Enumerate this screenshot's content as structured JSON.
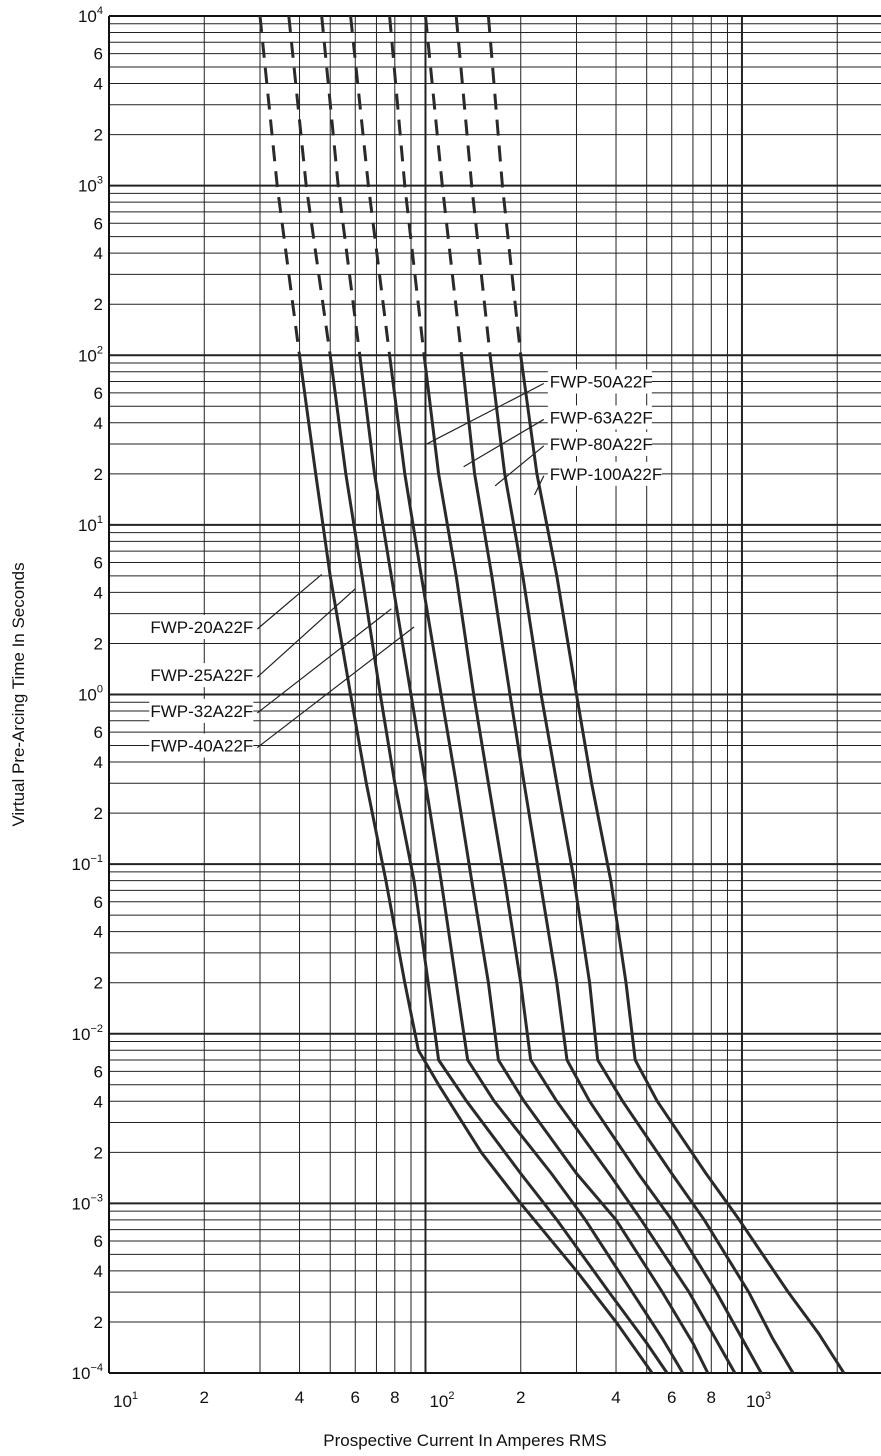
{
  "chart_data": {
    "type": "line",
    "title": "",
    "xlabel": "Prospective Current In Amperes RMS",
    "ylabel": "Virtual Pre-Arcing Time In Seconds",
    "xscale": "log",
    "yscale": "log",
    "xlim": [
      10,
      2750
    ],
    "ylim": [
      0.0001,
      10000
    ],
    "grid": true,
    "x_ticks": [
      {
        "v": 10,
        "base": "10",
        "exp": "1"
      },
      {
        "v": 20,
        "base": "2",
        "exp": ""
      },
      {
        "v": 40,
        "base": "4",
        "exp": ""
      },
      {
        "v": 60,
        "base": "6",
        "exp": ""
      },
      {
        "v": 80,
        "base": "8",
        "exp": ""
      },
      {
        "v": 100,
        "base": "10",
        "exp": "2"
      },
      {
        "v": 200,
        "base": "2",
        "exp": ""
      },
      {
        "v": 400,
        "base": "4",
        "exp": ""
      },
      {
        "v": 600,
        "base": "6",
        "exp": ""
      },
      {
        "v": 800,
        "base": "8",
        "exp": ""
      },
      {
        "v": 1000,
        "base": "10",
        "exp": "3"
      }
    ],
    "y_ticks": [
      {
        "v": 10000,
        "base": "10",
        "exp": "4"
      },
      {
        "v": 6000,
        "base": "6",
        "exp": ""
      },
      {
        "v": 4000,
        "base": "4",
        "exp": ""
      },
      {
        "v": 2000,
        "base": "2",
        "exp": ""
      },
      {
        "v": 1000,
        "base": "10",
        "exp": "3"
      },
      {
        "v": 600,
        "base": "6",
        "exp": ""
      },
      {
        "v": 400,
        "base": "4",
        "exp": ""
      },
      {
        "v": 200,
        "base": "2",
        "exp": ""
      },
      {
        "v": 100,
        "base": "10",
        "exp": "2"
      },
      {
        "v": 60,
        "base": "6",
        "exp": ""
      },
      {
        "v": 40,
        "base": "4",
        "exp": ""
      },
      {
        "v": 20,
        "base": "2",
        "exp": ""
      },
      {
        "v": 10,
        "base": "10",
        "exp": "1"
      },
      {
        "v": 6,
        "base": "6",
        "exp": ""
      },
      {
        "v": 4,
        "base": "4",
        "exp": ""
      },
      {
        "v": 2,
        "base": "2",
        "exp": ""
      },
      {
        "v": 1,
        "base": "10",
        "exp": "0"
      },
      {
        "v": 0.6,
        "base": "6",
        "exp": ""
      },
      {
        "v": 0.4,
        "base": "4",
        "exp": ""
      },
      {
        "v": 0.2,
        "base": "2",
        "exp": ""
      },
      {
        "v": 0.1,
        "base": "10",
        "exp": "−1"
      },
      {
        "v": 0.06,
        "base": "6",
        "exp": ""
      },
      {
        "v": 0.04,
        "base": "4",
        "exp": ""
      },
      {
        "v": 0.02,
        "base": "2",
        "exp": ""
      },
      {
        "v": 0.01,
        "base": "10",
        "exp": "−2"
      },
      {
        "v": 0.006,
        "base": "6",
        "exp": ""
      },
      {
        "v": 0.004,
        "base": "4",
        "exp": ""
      },
      {
        "v": 0.002,
        "base": "2",
        "exp": ""
      },
      {
        "v": 0.001,
        "base": "10",
        "exp": "−3"
      },
      {
        "v": 0.0006,
        "base": "6",
        "exp": ""
      },
      {
        "v": 0.0004,
        "base": "4",
        "exp": ""
      },
      {
        "v": 0.0002,
        "base": "2",
        "exp": ""
      },
      {
        "v": 0.0001,
        "base": "10",
        "exp": "−4"
      }
    ],
    "series": [
      {
        "name": "FWP-20A22F",
        "dashed_top": true,
        "points": [
          [
            30,
            10000
          ],
          [
            34,
            1000
          ],
          [
            40,
            100
          ],
          [
            45,
            20
          ],
          [
            50,
            5
          ],
          [
            58,
            1
          ],
          [
            65,
            0.3
          ],
          [
            75,
            0.08
          ],
          [
            86,
            0.02
          ],
          [
            95,
            0.008
          ],
          [
            110,
            0.005
          ],
          [
            150,
            0.002
          ],
          [
            200,
            0.001
          ],
          [
            300,
            0.0004
          ],
          [
            400,
            0.0002
          ],
          [
            520,
            0.0001
          ]
        ]
      },
      {
        "name": "FWP-25A22F",
        "dashed_top": true,
        "points": [
          [
            37,
            10000
          ],
          [
            42,
            1000
          ],
          [
            50,
            100
          ],
          [
            56,
            20
          ],
          [
            63,
            5
          ],
          [
            72,
            1
          ],
          [
            80,
            0.3
          ],
          [
            92,
            0.08
          ],
          [
            102,
            0.02
          ],
          [
            110,
            0.007
          ],
          [
            135,
            0.004
          ],
          [
            200,
            0.0015
          ],
          [
            260,
            0.0008
          ],
          [
            380,
            0.0003
          ],
          [
            500,
            0.00015
          ],
          [
            580,
            0.0001
          ]
        ]
      },
      {
        "name": "FWP-32A22F",
        "dashed_top": true,
        "points": [
          [
            47,
            10000
          ],
          [
            53,
            1000
          ],
          [
            62,
            100
          ],
          [
            69,
            20
          ],
          [
            78,
            5
          ],
          [
            90,
            1
          ],
          [
            100,
            0.3
          ],
          [
            112,
            0.08
          ],
          [
            125,
            0.02
          ],
          [
            136,
            0.007
          ],
          [
            165,
            0.004
          ],
          [
            250,
            0.0015
          ],
          [
            320,
            0.0008
          ],
          [
            450,
            0.0003
          ],
          [
            560,
            0.00016
          ],
          [
            650,
            0.0001
          ]
        ]
      },
      {
        "name": "FWP-40A22F",
        "dashed_top": true,
        "points": [
          [
            58,
            10000
          ],
          [
            66,
            1000
          ],
          [
            77,
            100
          ],
          [
            86,
            20
          ],
          [
            97,
            5
          ],
          [
            112,
            1
          ],
          [
            125,
            0.3
          ],
          [
            140,
            0.08
          ],
          [
            158,
            0.02
          ],
          [
            170,
            0.007
          ],
          [
            205,
            0.004
          ],
          [
            300,
            0.0015
          ],
          [
            400,
            0.0008
          ],
          [
            560,
            0.0003
          ],
          [
            700,
            0.00015
          ],
          [
            780,
            0.0001
          ]
        ]
      },
      {
        "name": "FWP-50A22F",
        "dashed_top": true,
        "points": [
          [
            77,
            10000
          ],
          [
            86,
            1000
          ],
          [
            99,
            100
          ],
          [
            110,
            20
          ],
          [
            125,
            5
          ],
          [
            142,
            1
          ],
          [
            158,
            0.3
          ],
          [
            178,
            0.08
          ],
          [
            200,
            0.02
          ],
          [
            215,
            0.007
          ],
          [
            260,
            0.004
          ],
          [
            380,
            0.0015
          ],
          [
            480,
            0.0008
          ],
          [
            680,
            0.0003
          ],
          [
            840,
            0.00015
          ],
          [
            950,
            0.0001
          ]
        ]
      },
      {
        "name": "FWP-63A22F",
        "dashed_top": true,
        "points": [
          [
            100,
            10000
          ],
          [
            113,
            1000
          ],
          [
            130,
            100
          ],
          [
            143,
            20
          ],
          [
            162,
            5
          ],
          [
            185,
            1
          ],
          [
            205,
            0.3
          ],
          [
            230,
            0.08
          ],
          [
            260,
            0.02
          ],
          [
            280,
            0.007
          ],
          [
            330,
            0.004
          ],
          [
            470,
            0.0015
          ],
          [
            600,
            0.0008
          ],
          [
            830,
            0.0003
          ],
          [
            1000,
            0.00016
          ],
          [
            1150,
            0.0001
          ]
        ]
      },
      {
        "name": "FWP-80A22F",
        "dashed_top": true,
        "points": [
          [
            125,
            10000
          ],
          [
            140,
            1000
          ],
          [
            160,
            100
          ],
          [
            178,
            20
          ],
          [
            203,
            5
          ],
          [
            232,
            1
          ],
          [
            260,
            0.3
          ],
          [
            295,
            0.08
          ],
          [
            330,
            0.02
          ],
          [
            350,
            0.007
          ],
          [
            420,
            0.004
          ],
          [
            600,
            0.0015
          ],
          [
            760,
            0.0008
          ],
          [
            1050,
            0.0003
          ],
          [
            1250,
            0.00016
          ],
          [
            1450,
            0.0001
          ]
        ]
      },
      {
        "name": "FWP-100A22F",
        "dashed_top": true,
        "points": [
          [
            158,
            10000
          ],
          [
            175,
            1000
          ],
          [
            200,
            100
          ],
          [
            225,
            20
          ],
          [
            260,
            5
          ],
          [
            300,
            1
          ],
          [
            335,
            0.3
          ],
          [
            385,
            0.08
          ],
          [
            430,
            0.02
          ],
          [
            460,
            0.007
          ],
          [
            540,
            0.004
          ],
          [
            770,
            0.0015
          ],
          [
            980,
            0.0008
          ],
          [
            1400,
            0.0003
          ],
          [
            1750,
            0.00017
          ],
          [
            2100,
            0.0001
          ]
        ]
      }
    ],
    "annotations": [
      {
        "text": "FWP-50A22F",
        "side": "right",
        "label_at": [
          240,
          70
        ],
        "arrow_to": [
          101,
          30
        ]
      },
      {
        "text": "FWP-63A22F",
        "side": "right",
        "label_at": [
          240,
          43
        ],
        "arrow_to": [
          132,
          22
        ]
      },
      {
        "text": "FWP-80A22F",
        "side": "right",
        "label_at": [
          240,
          30
        ],
        "arrow_to": [
          166,
          17
        ]
      },
      {
        "text": "FWP-100A22F",
        "side": "right",
        "label_at": [
          240,
          20
        ],
        "arrow_to": [
          221,
          15
        ]
      },
      {
        "text": "FWP-20A22F",
        "side": "left",
        "label_at": [
          29,
          2.5
        ],
        "arrow_to": [
          47,
          5.1
        ]
      },
      {
        "text": "FWP-25A22F",
        "side": "left",
        "label_at": [
          29,
          1.3
        ],
        "arrow_to": [
          60,
          4.2
        ]
      },
      {
        "text": "FWP-32A22F",
        "side": "left",
        "label_at": [
          29,
          0.8
        ],
        "arrow_to": [
          78,
          3.2
        ]
      },
      {
        "text": "FWP-40A22F",
        "side": "left",
        "label_at": [
          29,
          0.5
        ],
        "arrow_to": [
          92,
          2.5
        ]
      }
    ]
  }
}
